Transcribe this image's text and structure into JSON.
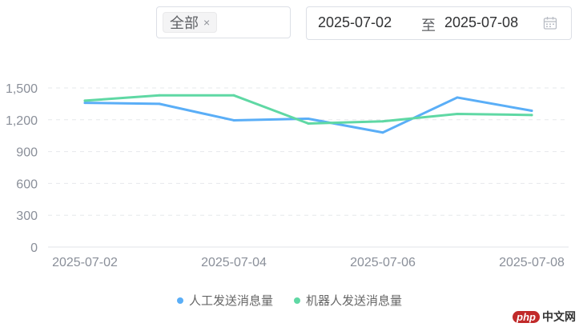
{
  "filter": {
    "tag_label": "全部",
    "close_glyph": "×"
  },
  "date_range": {
    "start": "2025-07-02",
    "separator": "至",
    "end": "2025-07-08",
    "icon": "calendar-icon"
  },
  "chart_data": {
    "type": "line",
    "x": [
      "2025-07-02",
      "2025-07-03",
      "2025-07-04",
      "2025-07-05",
      "2025-07-06",
      "2025-07-07",
      "2025-07-08"
    ],
    "x_tick_labels": [
      "2025-07-02",
      "2025-07-04",
      "2025-07-06",
      "2025-07-08"
    ],
    "y_tick_labels": [
      "0",
      "300",
      "600",
      "900",
      "1,200",
      "1,500"
    ],
    "ylim": [
      0,
      1500
    ],
    "grid": true,
    "legend_position": "bottom",
    "series": [
      {
        "name": "人工发送消息量",
        "color": "#5aaef7",
        "values": [
          1360,
          1350,
          1195,
          1210,
          1080,
          1410,
          1285
        ]
      },
      {
        "name": "机器人发送消息量",
        "color": "#5fd8a4",
        "values": [
          1380,
          1430,
          1430,
          1165,
          1185,
          1255,
          1245
        ]
      }
    ]
  },
  "watermark": {
    "brand": "php",
    "text": "中文网"
  }
}
